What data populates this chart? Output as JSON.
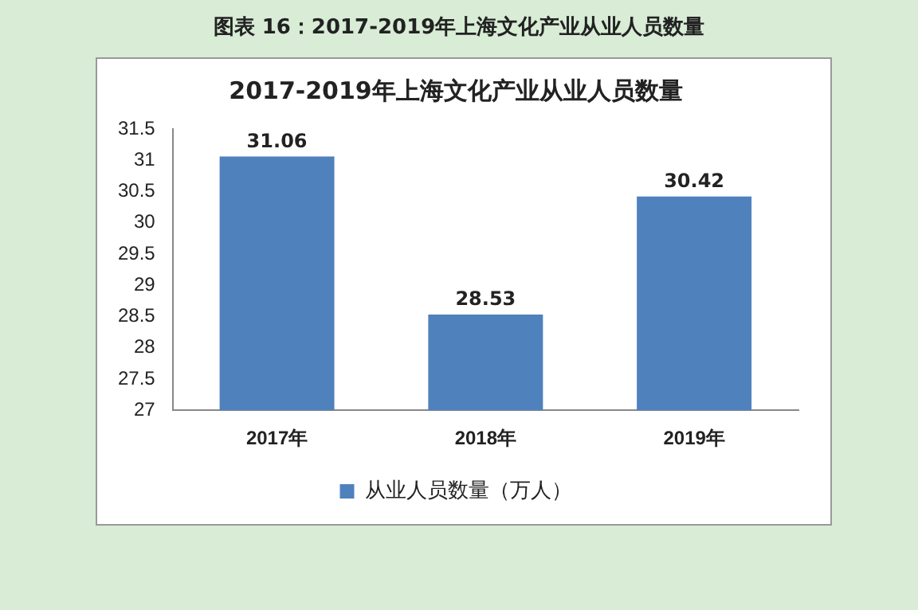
{
  "chart_data": {
    "type": "bar",
    "title": "图表 16：2017-2019年上海文化产业从业人员数量",
    "subtitle": "2017-2019年上海文化产业从业人员数量",
    "categories": [
      "2017年",
      "2018年",
      "2019年"
    ],
    "series": [
      {
        "name": "从业人员数量（万人）",
        "color": "#4f81bd",
        "values": [
          31.06,
          28.53,
          30.42
        ]
      }
    ],
    "ylim": [
      27,
      31.5
    ],
    "yticks": [
      27,
      27.5,
      28,
      28.5,
      29,
      29.5,
      30,
      30.5,
      31,
      31.5
    ],
    "grid": false,
    "legend": "bottom",
    "data_labels": true
  }
}
